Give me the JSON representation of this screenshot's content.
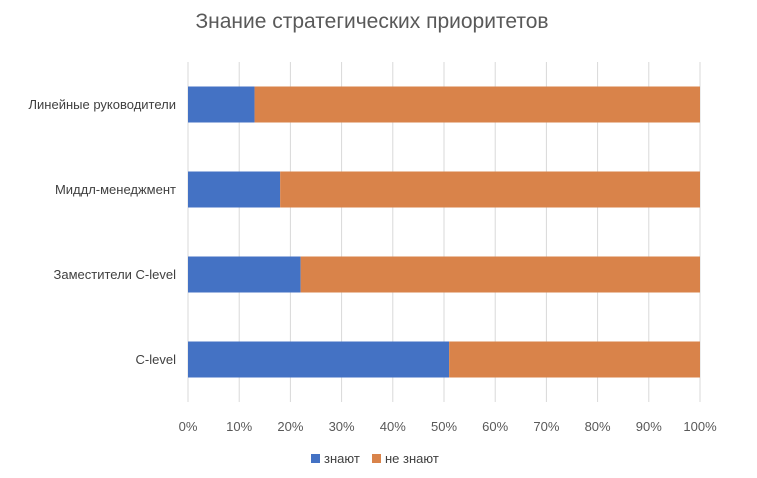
{
  "chart_data": {
    "type": "bar",
    "orientation": "horizontal",
    "stacked": "percent",
    "title": "Знание стратегических приоритетов",
    "categories": [
      "Линейные руководители",
      "Миддл-менеджмент",
      "Заместители C-level",
      "C-level"
    ],
    "series": [
      {
        "name": "знают",
        "values": [
          13,
          18,
          22,
          51
        ],
        "color": "#4472c4"
      },
      {
        "name": "не знают",
        "values": [
          87,
          82,
          78,
          49
        ],
        "color": "#d9834a"
      }
    ],
    "xlim": [
      0,
      100
    ],
    "x_ticks": [
      "0%",
      "10%",
      "20%",
      "30%",
      "40%",
      "50%",
      "60%",
      "70%",
      "80%",
      "90%",
      "100%"
    ],
    "grid": "vertical",
    "legend_position": "bottom"
  }
}
